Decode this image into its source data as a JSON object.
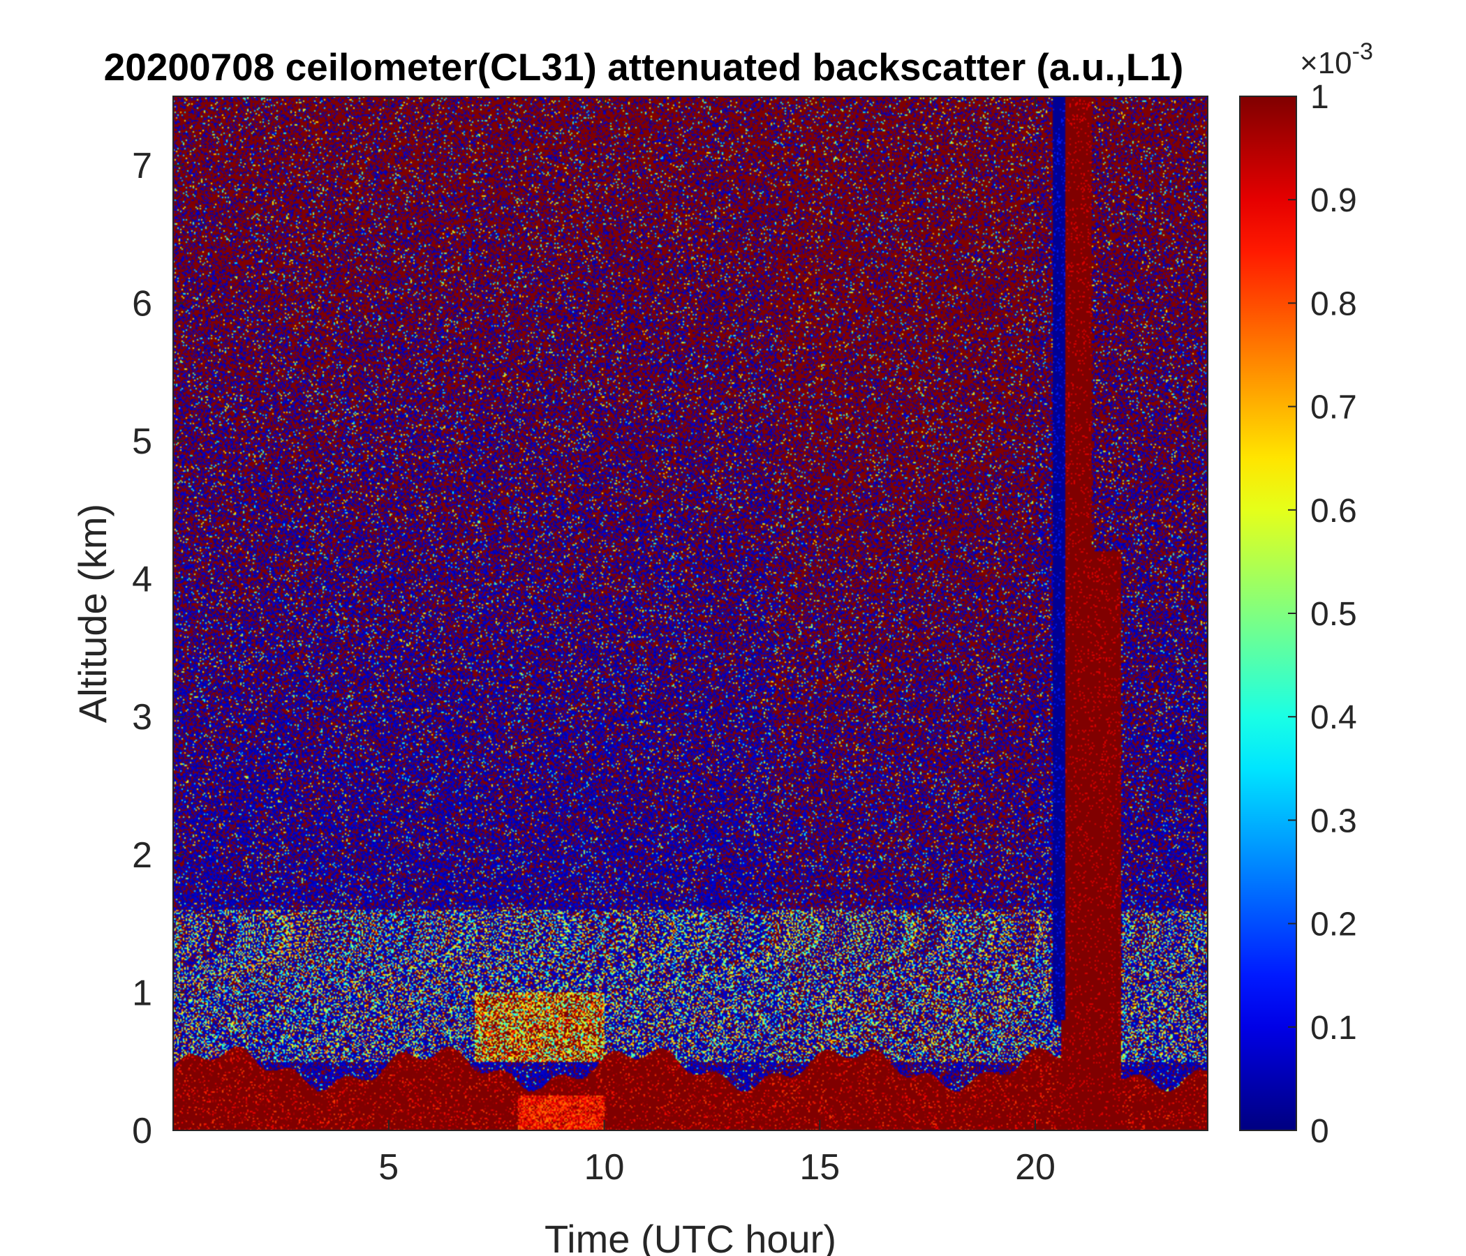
{
  "chart_data": {
    "type": "heatmap",
    "title": "20200708 ceilometer(CL31) attenuated backscatter (a.u.,L1)",
    "xlabel": "Time (UTC hour)",
    "ylabel": "Altitude (km)",
    "xlim": [
      0,
      24
    ],
    "ylim": [
      0,
      7.5
    ],
    "xticks": [
      5,
      10,
      15,
      20
    ],
    "yticks": [
      0,
      1,
      2,
      3,
      4,
      5,
      6,
      7
    ],
    "colorbar": {
      "colormap": "jet",
      "clim": [
        0,
        1
      ],
      "ticks": [
        0,
        0.1,
        0.2,
        0.3,
        0.4,
        0.5,
        0.6,
        0.7,
        0.8,
        0.9,
        1
      ],
      "exponent_label": "×10",
      "exponent": "-3"
    },
    "grid": false,
    "features": [
      {
        "name": "boundary layer",
        "time_range": [
          0,
          24
        ],
        "altitude_km": [
          0,
          0.6
        ],
        "level": 1.0
      },
      {
        "name": "mixed aerosol layer",
        "time_range": [
          7,
          10
        ],
        "altitude_km": [
          0.5,
          1.0
        ],
        "level": 0.7
      },
      {
        "name": "thick cloud / precipitation",
        "time_range": [
          20.6,
          22
        ],
        "altitude_km": [
          0,
          7.5
        ],
        "level": 1.0
      },
      {
        "name": "signal extinction gap",
        "time_range": [
          20.4,
          20.7
        ],
        "altitude_km": [
          0.8,
          7.5
        ],
        "level": 0.0
      }
    ]
  },
  "colors": {
    "high": "#800000",
    "low": "#00008f",
    "axis": "#262626"
  }
}
